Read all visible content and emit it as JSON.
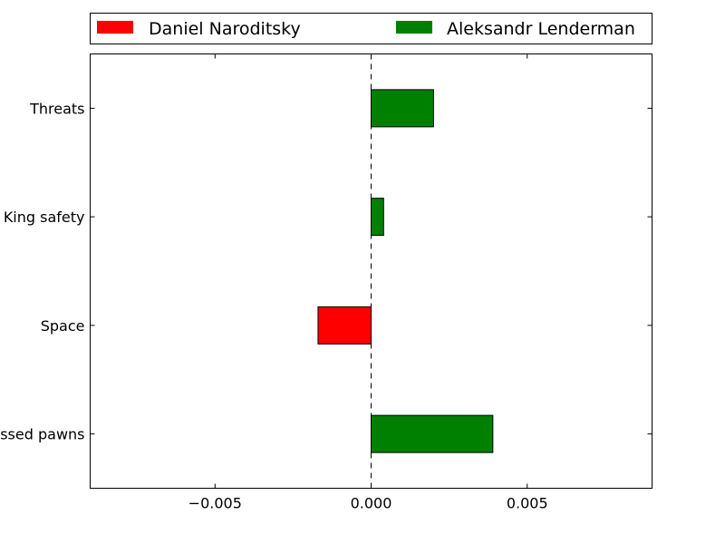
{
  "chart_data": {
    "type": "bar",
    "orientation": "horizontal",
    "categories": [
      "Passed pawns",
      "Space",
      "King safety",
      "Threats"
    ],
    "values": [
      0.0039,
      -0.0017,
      0.0004,
      0.002
    ],
    "xlim": [
      -0.009,
      0.009
    ],
    "xticks": [
      {
        "value": -0.005,
        "label": "−0.005"
      },
      {
        "value": 0.0,
        "label": "0.000"
      },
      {
        "value": 0.005,
        "label": "0.005"
      }
    ],
    "legend": {
      "placement": "top",
      "entries": [
        {
          "name": "Daniel Naroditsky",
          "color": "#ff0000"
        },
        {
          "name": "Aleksandr Lenderman",
          "color": "#008000"
        }
      ]
    },
    "colors": {
      "negative": "#ff0000",
      "positive": "#008000"
    },
    "zero_line": "dashed",
    "grid": false
  }
}
